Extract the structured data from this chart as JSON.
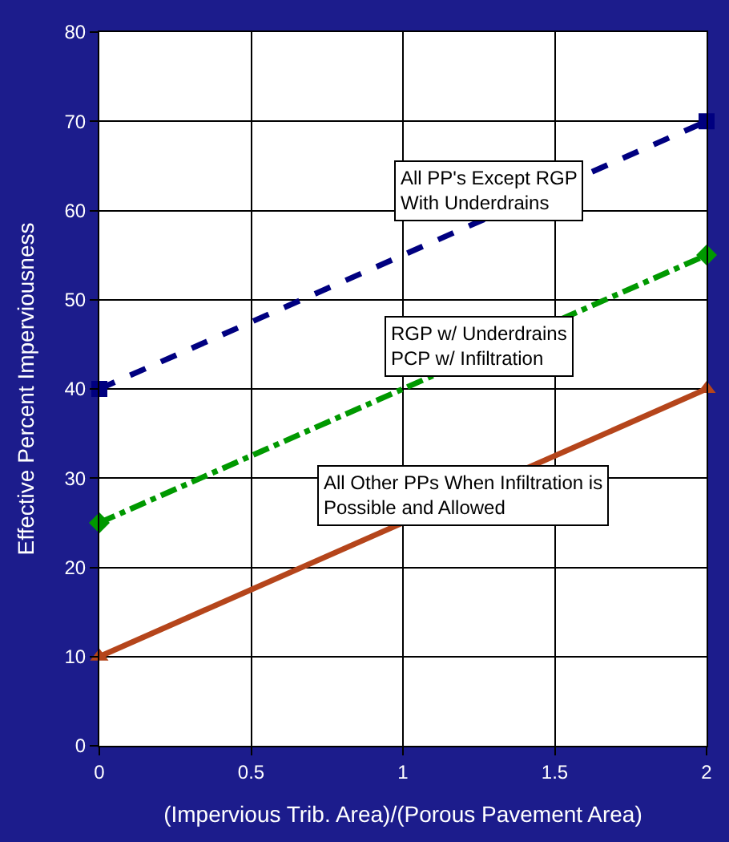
{
  "chart_data": {
    "type": "line",
    "xlabel": "(Impervious Trib. Area)/(Porous Pavement Area)",
    "ylabel": "Effective Percent Imperviousness",
    "xlim": [
      0,
      2
    ],
    "xticks": [
      0,
      0.5,
      1,
      1.5,
      2
    ],
    "ylim": [
      0,
      80
    ],
    "yticks": [
      0,
      10,
      20,
      30,
      40,
      50,
      60,
      70,
      80
    ],
    "grid": true,
    "legend": false,
    "x": [
      0,
      2
    ],
    "series": [
      {
        "name": "All PP's Except RGP\nWith Underdrains",
        "color": "#000080",
        "values": [
          40,
          70
        ],
        "marker": "square",
        "line_style": "dashed"
      },
      {
        "name": "RGP w/ Underdrains\nPCP w/ Infiltration",
        "color": "#009900",
        "values": [
          25,
          55
        ],
        "marker": "diamond",
        "line_style": "dashdot"
      },
      {
        "name": "All Other PPs When Infiltration is\nPossible and Allowed",
        "color": "#b5451b",
        "values": [
          10,
          40
        ],
        "marker": "triangle",
        "line_style": "solid"
      }
    ]
  }
}
